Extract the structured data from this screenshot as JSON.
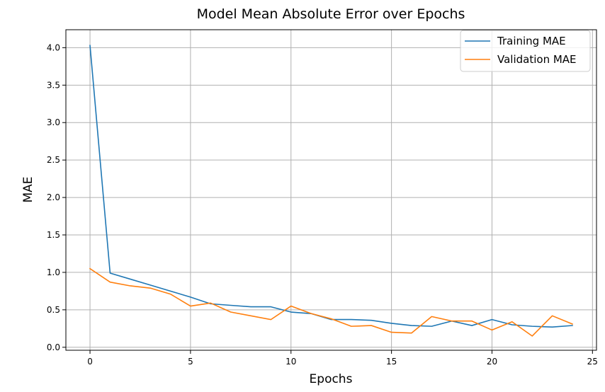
{
  "chart_data": {
    "type": "line",
    "title": "Model Mean Absolute Error over Epochs",
    "xlabel": "Epochs",
    "ylabel": "MAE",
    "xlim": [
      -1.2,
      25.2
    ],
    "ylim": [
      -0.04,
      4.24
    ],
    "xticks": [
      0,
      5,
      10,
      15,
      20,
      25
    ],
    "yticks": [
      0.0,
      0.5,
      1.0,
      1.5,
      2.0,
      2.5,
      3.0,
      3.5,
      4.0
    ],
    "xtick_labels": [
      "0",
      "5",
      "10",
      "15",
      "20",
      "25"
    ],
    "ytick_labels": [
      "0.0",
      "0.5",
      "1.0",
      "1.5",
      "2.0",
      "2.5",
      "3.0",
      "3.5",
      "4.0"
    ],
    "grid": true,
    "legend_position": "top-right",
    "x": [
      0,
      1,
      2,
      3,
      4,
      5,
      6,
      7,
      8,
      9,
      10,
      11,
      12,
      13,
      14,
      15,
      16,
      17,
      18,
      19,
      20,
      21,
      22,
      23,
      24
    ],
    "series": [
      {
        "name": "Training MAE",
        "color": "#1f77b4",
        "values": [
          4.03,
          0.99,
          0.91,
          0.83,
          0.75,
          0.67,
          0.58,
          0.56,
          0.54,
          0.54,
          0.47,
          0.45,
          0.37,
          0.37,
          0.36,
          0.32,
          0.29,
          0.28,
          0.35,
          0.29,
          0.37,
          0.3,
          0.28,
          0.27,
          0.29
        ]
      },
      {
        "name": "Validation MAE",
        "color": "#ff7f0e",
        "values": [
          1.05,
          0.87,
          0.82,
          0.79,
          0.71,
          0.55,
          0.59,
          0.47,
          0.42,
          0.37,
          0.55,
          0.45,
          0.38,
          0.28,
          0.29,
          0.2,
          0.19,
          0.41,
          0.35,
          0.35,
          0.23,
          0.34,
          0.15,
          0.42,
          0.31
        ]
      }
    ]
  }
}
